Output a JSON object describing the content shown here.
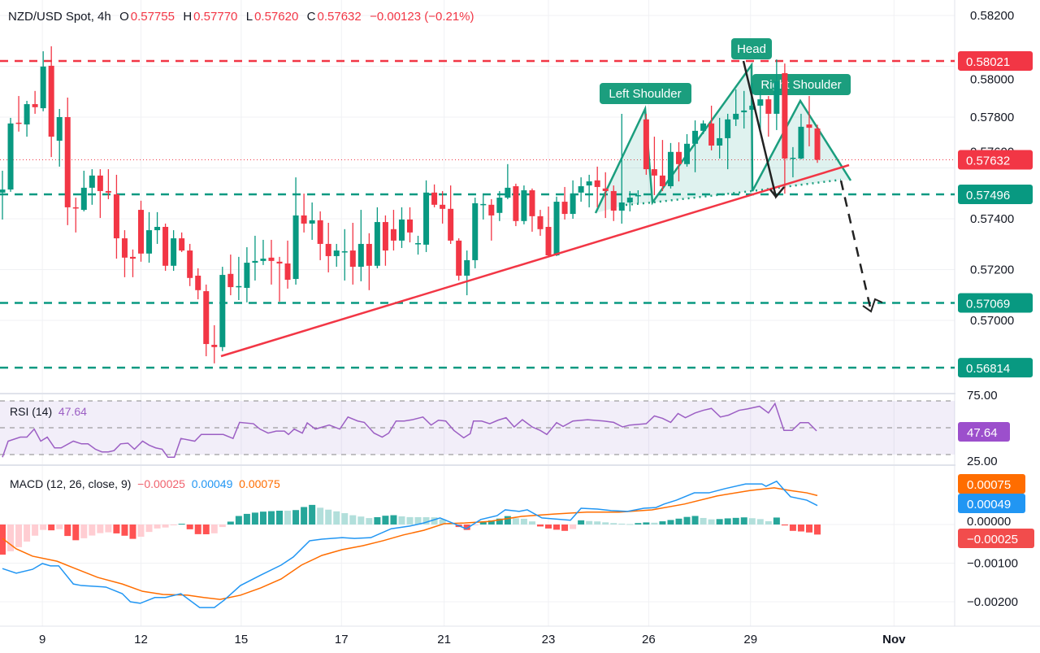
{
  "header": {
    "symbol": "NZD/USD Spot, 4h",
    "open_label": "O",
    "open": "0.57755",
    "high_label": "H",
    "high": "0.57770",
    "low_label": "L",
    "low": "0.57620",
    "close_label": "C",
    "close": "0.57632",
    "change": "−0.00123 (−0.21%)"
  },
  "colors": {
    "up": "#089981",
    "down": "#f23645",
    "rsi": "#9c5fc4",
    "macd": "#2196f3",
    "signal": "#ff6d00"
  },
  "annotations": {
    "head": "Head",
    "left_shoulder": "Left Shoulder",
    "right_shoulder": "Right Shoulder"
  },
  "rsi": {
    "label": "RSI (14)",
    "value": "47.64",
    "ticks": [
      "75.00",
      "25.00"
    ]
  },
  "macd": {
    "label": "MACD (12, 26, close, 9)",
    "hist_value": "−0.00025",
    "macd_value": "0.00049",
    "signal_value": "0.00075",
    "ticks": [
      "0.00000",
      "−0.00100",
      "−0.00200"
    ]
  },
  "chart_data": {
    "type": "candlestick",
    "price_ticks": [
      "0.58200",
      "0.58000",
      "0.57800",
      "0.57600",
      "0.57400",
      "0.57200",
      "0.57000"
    ],
    "x_ticks": [
      "9",
      "12",
      "15",
      "17",
      "21",
      "23",
      "26",
      "29",
      "Nov"
    ],
    "levels": [
      {
        "value": 0.58021,
        "label": "0.58021",
        "color": "#f23645"
      },
      {
        "value": 0.57496,
        "label": "0.57496",
        "color": "#089981"
      },
      {
        "value": 0.57069,
        "label": "0.57069",
        "color": "#089981"
      },
      {
        "value": 0.56814,
        "label": "0.56814",
        "color": "#089981"
      }
    ],
    "last_price": {
      "value": 0.57632,
      "label": "0.57632"
    },
    "candles_ohlc": [
      [
        0.57503,
        0.57589,
        0.57397,
        0.57515
      ],
      [
        0.57515,
        0.57797,
        0.57506,
        0.57775
      ],
      [
        0.57778,
        0.57883,
        0.57743,
        0.57774
      ],
      [
        0.57771,
        0.57864,
        0.57723,
        0.57851
      ],
      [
        0.57851,
        0.57903,
        0.57813,
        0.57839
      ],
      [
        0.57835,
        0.58059,
        0.57823,
        0.57999
      ],
      [
        0.58002,
        0.58079,
        0.57643,
        0.57723
      ],
      [
        0.57707,
        0.57832,
        0.57605,
        0.578
      ],
      [
        0.578,
        0.57877,
        0.57375,
        0.57445
      ],
      [
        0.57445,
        0.57483,
        0.57346,
        0.57442
      ],
      [
        0.57435,
        0.57589,
        0.57429,
        0.57522
      ],
      [
        0.57522,
        0.57595,
        0.57455,
        0.5757
      ],
      [
        0.5757,
        0.57595,
        0.57403,
        0.57509
      ],
      [
        0.57509,
        0.57595,
        0.57477,
        0.57503
      ],
      [
        0.57496,
        0.57573,
        0.57243,
        0.57323
      ],
      [
        0.57323,
        0.57355,
        0.5717,
        0.57247
      ],
      [
        0.5725,
        0.57279,
        0.5717,
        0.57243
      ],
      [
        0.57435,
        0.57471,
        0.57231,
        0.57263
      ],
      [
        0.57263,
        0.57426,
        0.57227,
        0.57355
      ],
      [
        0.57355,
        0.57426,
        0.57301,
        0.57368
      ],
      [
        0.57368,
        0.57381,
        0.57195,
        0.57215
      ],
      [
        0.57215,
        0.57355,
        0.57195,
        0.57323
      ],
      [
        0.57323,
        0.57346,
        0.57269,
        0.57275
      ],
      [
        0.57275,
        0.57301,
        0.57135,
        0.57167
      ],
      [
        0.57176,
        0.57205,
        0.57083,
        0.57119
      ],
      [
        0.57115,
        0.57141,
        0.56859,
        0.56907
      ],
      [
        0.56904,
        0.56981,
        0.56831,
        0.56895
      ],
      [
        0.56895,
        0.57211,
        0.56879,
        0.57179
      ],
      [
        0.57183,
        0.57259,
        0.57099,
        0.57131
      ],
      [
        0.57131,
        0.5725,
        0.5708,
        0.57135
      ],
      [
        0.57128,
        0.57288,
        0.57071,
        0.57227
      ],
      [
        0.57227,
        0.57333,
        0.57157,
        0.57234
      ],
      [
        0.57234,
        0.57317,
        0.57218,
        0.57243
      ],
      [
        0.57247,
        0.57317,
        0.57141,
        0.57234
      ],
      [
        0.57231,
        0.5725,
        0.57074,
        0.57224
      ],
      [
        0.57224,
        0.57314,
        0.57125,
        0.5716
      ],
      [
        0.57163,
        0.57563,
        0.57141,
        0.57413
      ],
      [
        0.57413,
        0.57499,
        0.57346,
        0.57381
      ],
      [
        0.57381,
        0.57464,
        0.57317,
        0.57394
      ],
      [
        0.57394,
        0.57429,
        0.57237,
        0.57301
      ],
      [
        0.57301,
        0.57384,
        0.57189,
        0.57253
      ],
      [
        0.57253,
        0.57301,
        0.57211,
        0.57275
      ],
      [
        0.57272,
        0.57359,
        0.57157,
        0.57272
      ],
      [
        0.57275,
        0.57384,
        0.57141,
        0.57211
      ],
      [
        0.57211,
        0.57435,
        0.57154,
        0.57301
      ],
      [
        0.57301,
        0.57343,
        0.57119,
        0.57215
      ],
      [
        0.57215,
        0.57445,
        0.57205,
        0.57387
      ],
      [
        0.57387,
        0.57413,
        0.57215,
        0.57275
      ],
      [
        0.57359,
        0.57435,
        0.57275,
        0.57314
      ],
      [
        0.57314,
        0.57445,
        0.57285,
        0.57397
      ],
      [
        0.57397,
        0.57445,
        0.57307,
        0.57346
      ],
      [
        0.57304,
        0.57333,
        0.57259,
        0.57304
      ],
      [
        0.57298,
        0.57551,
        0.57269,
        0.57503
      ],
      [
        0.57503,
        0.57535,
        0.57445,
        0.57455
      ],
      [
        0.57455,
        0.57509,
        0.57381,
        0.57439
      ],
      [
        0.57439,
        0.57531,
        0.57301,
        0.57314
      ],
      [
        0.57314,
        0.57323,
        0.57157,
        0.57176
      ],
      [
        0.57176,
        0.57275,
        0.57099,
        0.57237
      ],
      [
        0.57237,
        0.57483,
        0.57205,
        0.57461
      ],
      [
        0.57458,
        0.57499,
        0.57397,
        0.57458
      ],
      [
        0.57455,
        0.57477,
        0.57314,
        0.57413
      ],
      [
        0.57423,
        0.57509,
        0.57391,
        0.57483
      ],
      [
        0.57483,
        0.57615,
        0.57477,
        0.57522
      ],
      [
        0.57528,
        0.57538,
        0.57371,
        0.57391
      ],
      [
        0.57391,
        0.57531,
        0.57378,
        0.57512
      ],
      [
        0.57512,
        0.57519,
        0.57349,
        0.5741
      ],
      [
        0.5741,
        0.57435,
        0.57333,
        0.57359
      ],
      [
        0.57368,
        0.57448,
        0.5725,
        0.57256
      ],
      [
        0.57256,
        0.57487,
        0.57253,
        0.57467
      ],
      [
        0.57467,
        0.57525,
        0.57397,
        0.57419
      ],
      [
        0.57419,
        0.57551,
        0.574,
        0.57499
      ],
      [
        0.57503,
        0.57563,
        0.57467,
        0.57528
      ],
      [
        0.57531,
        0.57573,
        0.57445,
        0.57547
      ],
      [
        0.57551,
        0.57605,
        0.57445,
        0.57525
      ],
      [
        0.57519,
        0.57583,
        0.57403,
        0.57509
      ],
      [
        0.57509,
        0.57531,
        0.57391,
        0.57432
      ],
      [
        0.57432,
        0.57813,
        0.57381,
        0.57464
      ],
      [
        0.57464,
        0.57509,
        0.57429,
        0.57483
      ],
      [
        0.57493,
        0.57512,
        0.57461,
        0.57493
      ],
      [
        0.57791,
        0.57813,
        0.57573,
        0.57595
      ],
      [
        0.57595,
        0.57723,
        0.57493,
        0.5757
      ],
      [
        0.5757,
        0.5771,
        0.57509,
        0.57528
      ],
      [
        0.57528,
        0.57698,
        0.57519,
        0.57663
      ],
      [
        0.57663,
        0.57701,
        0.57547,
        0.57615
      ],
      [
        0.57615,
        0.57733,
        0.57605,
        0.57695
      ],
      [
        0.57695,
        0.57787,
        0.57583,
        0.57746
      ],
      [
        0.57746,
        0.57787,
        0.57733,
        0.57775
      ],
      [
        0.57775,
        0.57845,
        0.57669,
        0.57688
      ],
      [
        0.57688,
        0.57797,
        0.57637,
        0.57717
      ],
      [
        0.57717,
        0.57813,
        0.57595,
        0.57791
      ],
      [
        0.57791,
        0.57909,
        0.57765,
        0.57813
      ],
      [
        0.57819,
        0.57903,
        0.57755,
        0.57826
      ],
      [
        0.57829,
        0.57935,
        0.57509,
        0.57845
      ],
      [
        0.57845,
        0.57903,
        0.57749,
        0.5787
      ],
      [
        0.5787,
        0.57883,
        0.57723,
        0.57813
      ],
      [
        0.57813,
        0.58027,
        0.57749,
        0.57941
      ],
      [
        0.57973,
        0.58011,
        0.57499,
        0.57637
      ],
      [
        0.5764,
        0.57682,
        0.57563,
        0.5764
      ],
      [
        0.57637,
        0.57813,
        0.57634,
        0.57762
      ],
      [
        0.57771,
        0.57883,
        0.57685,
        0.57758
      ],
      [
        0.57755,
        0.5777,
        0.5762,
        0.57632
      ]
    ],
    "rsi_series": [
      [
        0,
        28
      ],
      [
        0.7,
        40
      ],
      [
        2.2,
        43
      ],
      [
        3,
        43
      ],
      [
        3.9,
        49
      ],
      [
        4.7,
        40
      ],
      [
        5.5,
        43
      ],
      [
        6.4,
        35
      ],
      [
        7.2,
        35
      ],
      [
        8.7,
        40
      ],
      [
        9.7,
        38
      ],
      [
        10.5,
        38
      ],
      [
        11.4,
        34
      ],
      [
        12.2,
        32
      ],
      [
        13,
        32
      ],
      [
        13.7,
        33
      ],
      [
        14.5,
        38
      ],
      [
        15.4,
        38.5
      ],
      [
        16.2,
        34
      ],
      [
        17.2,
        40
      ],
      [
        18,
        37
      ],
      [
        18.8,
        35
      ],
      [
        19.6,
        34
      ],
      [
        20.3,
        28
      ],
      [
        21.1,
        28
      ],
      [
        21.9,
        42
      ],
      [
        23.6,
        40
      ],
      [
        24.4,
        45
      ],
      [
        27.1,
        45
      ],
      [
        28.3,
        42
      ],
      [
        29.1,
        54
      ],
      [
        30.8,
        53
      ],
      [
        31.6,
        49
      ],
      [
        32.6,
        46
      ],
      [
        33.6,
        47.5
      ],
      [
        34.6,
        47.5
      ],
      [
        35.1,
        45
      ],
      [
        35.8,
        49
      ],
      [
        36.8,
        46
      ],
      [
        37.4,
        53.6
      ],
      [
        38.4,
        49
      ],
      [
        40.1,
        52
      ],
      [
        41.4,
        49
      ],
      [
        42.4,
        58
      ],
      [
        43.6,
        55
      ],
      [
        44.4,
        54
      ],
      [
        45.6,
        46
      ],
      [
        46.6,
        43
      ],
      [
        47.4,
        46
      ],
      [
        48.3,
        55
      ],
      [
        49.3,
        55
      ],
      [
        50.3,
        56
      ],
      [
        51.6,
        58
      ],
      [
        52.6,
        52
      ],
      [
        53.5,
        55.6
      ],
      [
        54.4,
        55
      ],
      [
        55.4,
        48
      ],
      [
        56.6,
        42.5
      ],
      [
        57.4,
        45.6
      ],
      [
        57.8,
        55
      ],
      [
        58.8,
        55
      ],
      [
        59.8,
        53
      ],
      [
        60.8,
        55.6
      ],
      [
        61.8,
        57.5
      ],
      [
        62.8,
        50.6
      ],
      [
        63.8,
        56
      ],
      [
        65,
        50.6
      ],
      [
        66,
        48
      ],
      [
        66.8,
        45
      ],
      [
        68,
        53.8
      ],
      [
        68.8,
        51
      ],
      [
        70,
        55
      ],
      [
        71.8,
        56
      ],
      [
        73.8,
        55
      ],
      [
        75,
        54
      ],
      [
        76.1,
        50.6
      ],
      [
        77,
        52
      ],
      [
        79,
        53
      ],
      [
        80,
        58.8
      ],
      [
        81,
        57
      ],
      [
        82,
        54
      ],
      [
        82.9,
        60.6
      ],
      [
        83.8,
        57.5
      ],
      [
        85,
        61
      ],
      [
        86,
        63
      ],
      [
        87,
        64.4
      ],
      [
        88.1,
        58
      ],
      [
        89.1,
        59.4
      ],
      [
        90.4,
        63
      ],
      [
        91.4,
        64
      ],
      [
        92.9,
        66
      ],
      [
        94,
        61
      ],
      [
        94.8,
        68
      ],
      [
        95.9,
        48
      ],
      [
        96.9,
        48
      ],
      [
        97.9,
        53.8
      ],
      [
        98.9,
        53.8
      ],
      [
        99.9,
        47.64
      ]
    ],
    "macd_series": [
      [
        0,
        -0.00114
      ],
      [
        1.7,
        -0.00126
      ],
      [
        3.7,
        -0.00116
      ],
      [
        4.9,
        -0.00101
      ],
      [
        5.9,
        -0.00107
      ],
      [
        6.9,
        -0.00107
      ],
      [
        8.7,
        -0.00154
      ],
      [
        9.7,
        -0.00158
      ],
      [
        12.7,
        -0.00162
      ],
      [
        14.7,
        -0.00179
      ],
      [
        15.7,
        -0.002
      ],
      [
        16.9,
        -0.00204
      ],
      [
        18.7,
        -0.00189
      ],
      [
        20,
        -0.00189
      ],
      [
        21.9,
        -0.00179
      ],
      [
        24.2,
        -0.00215
      ],
      [
        26,
        -0.00215
      ],
      [
        27.2,
        -0.00196
      ],
      [
        29.2,
        -0.00158
      ],
      [
        31.7,
        -0.00131
      ],
      [
        34.2,
        -0.00105
      ],
      [
        35.7,
        -0.00084
      ],
      [
        37.7,
        -0.00042
      ],
      [
        39.2,
        -0.00038
      ],
      [
        41.7,
        -0.00034
      ],
      [
        43.2,
        -0.00036
      ],
      [
        45.2,
        -0.00034
      ],
      [
        47.7,
        -0.00011
      ],
      [
        50,
        -4e-05
      ],
      [
        51.7,
        4e-05
      ],
      [
        53.7,
        0.00017
      ],
      [
        55.2,
        4e-05
      ],
      [
        56.9,
        -0.00011
      ],
      [
        58.7,
        0.00013
      ],
      [
        60.7,
        0.00023
      ],
      [
        61.7,
        0.00038
      ],
      [
        63.4,
        0.00034
      ],
      [
        64.4,
        0.00038
      ],
      [
        66.2,
        0.00017
      ],
      [
        69.7,
        0.00011
      ],
      [
        71,
        0.00042
      ],
      [
        73,
        0.0004
      ],
      [
        74.7,
        0.00036
      ],
      [
        76.7,
        0.00034
      ],
      [
        78.7,
        0.00042
      ],
      [
        80.2,
        0.00044
      ],
      [
        81.2,
        0.00053
      ],
      [
        82.7,
        0.00063
      ],
      [
        84.9,
        0.00082
      ],
      [
        86.7,
        0.00082
      ],
      [
        88.7,
        0.00093
      ],
      [
        91.2,
        0.00105
      ],
      [
        93.2,
        0.00105
      ],
      [
        93.7,
        0.00099
      ],
      [
        95,
        0.00112
      ],
      [
        95.7,
        0.00095
      ],
      [
        96.7,
        0.00072
      ],
      [
        98.7,
        0.00063
      ],
      [
        100,
        0.00049
      ]
    ],
    "signal_series": [
      [
        0,
        -0.00036
      ],
      [
        1.7,
        -0.00063
      ],
      [
        3.7,
        -0.00082
      ],
      [
        6.7,
        -0.00095
      ],
      [
        8.7,
        -0.00112
      ],
      [
        11.7,
        -0.00137
      ],
      [
        14.7,
        -0.00154
      ],
      [
        17.2,
        -0.00173
      ],
      [
        19.7,
        -0.00181
      ],
      [
        22.7,
        -0.00183
      ],
      [
        24.7,
        -0.00189
      ],
      [
        26.7,
        -0.00194
      ],
      [
        29.2,
        -0.00183
      ],
      [
        31.7,
        -0.00164
      ],
      [
        34.2,
        -0.00141
      ],
      [
        36.7,
        -0.00105
      ],
      [
        39.2,
        -0.0008
      ],
      [
        41.7,
        -0.00065
      ],
      [
        44.2,
        -0.00055
      ],
      [
        46.7,
        -0.00042
      ],
      [
        49.2,
        -0.00027
      ],
      [
        51.7,
        -0.00015
      ],
      [
        54.2,
        2e-05
      ],
      [
        56.7,
        4e-05
      ],
      [
        59.7,
        8e-05
      ],
      [
        63.7,
        0.00021
      ],
      [
        67.7,
        0.00027
      ],
      [
        71.7,
        0.00032
      ],
      [
        75.7,
        0.00032
      ],
      [
        79.7,
        0.00038
      ],
      [
        83.7,
        0.00053
      ],
      [
        87.7,
        0.00074
      ],
      [
        91.7,
        0.00088
      ],
      [
        94.7,
        0.00095
      ],
      [
        96.7,
        0.00088
      ],
      [
        98.7,
        0.00082
      ],
      [
        100,
        0.00075
      ]
    ]
  }
}
